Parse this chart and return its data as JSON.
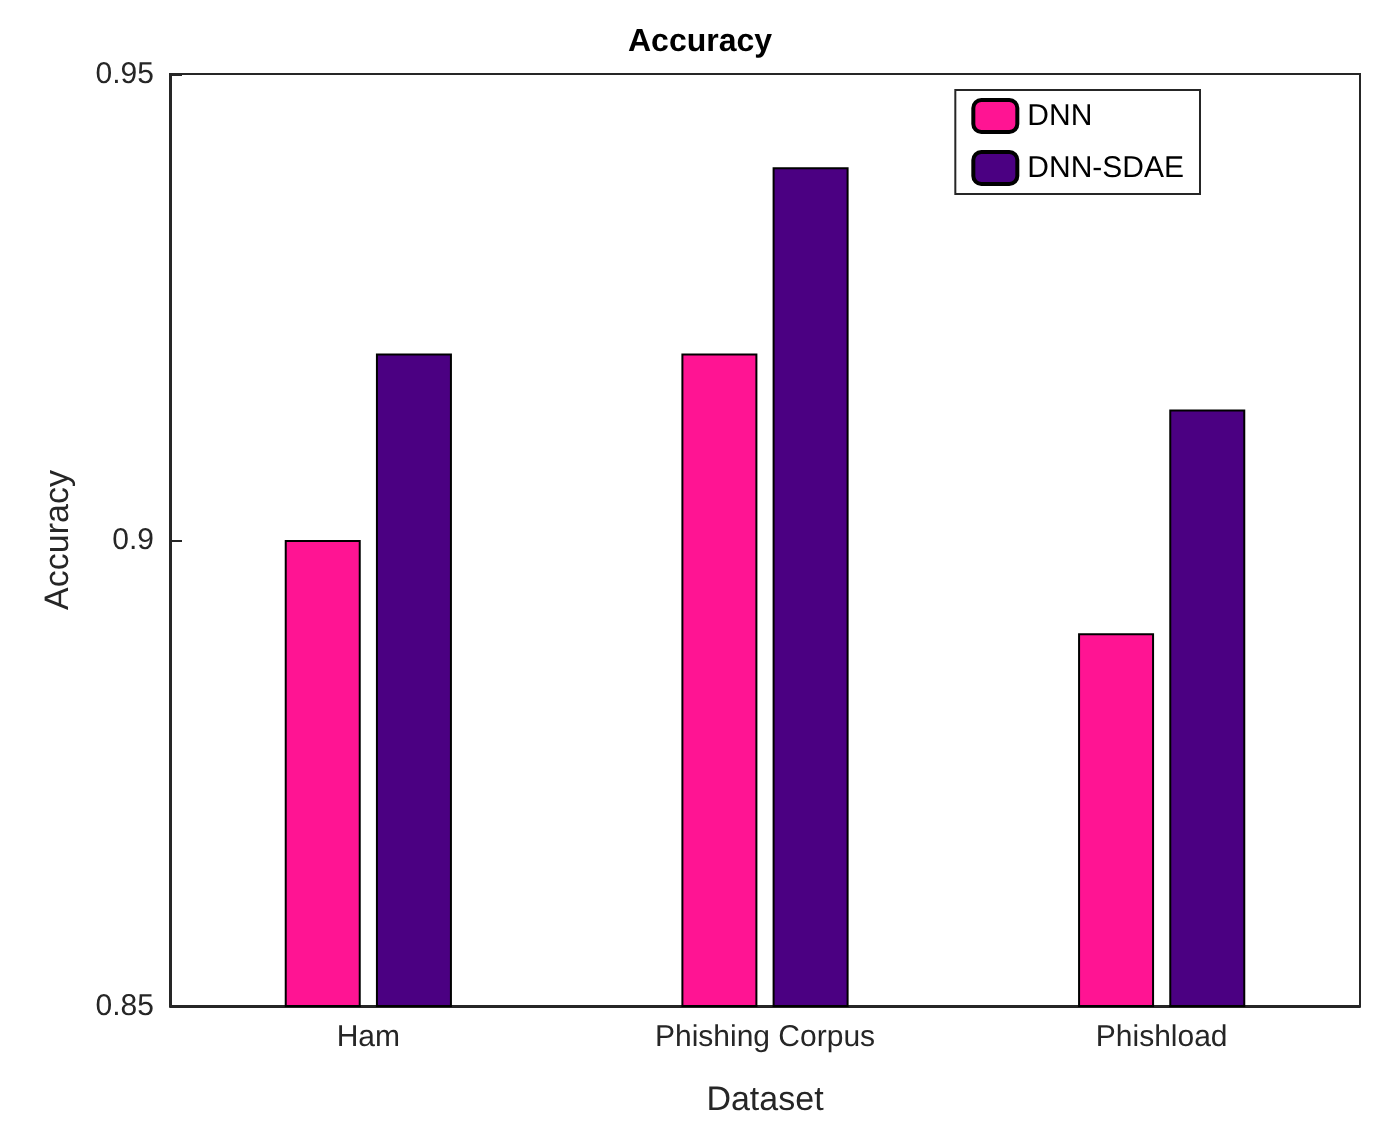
{
  "chart_data": {
    "type": "bar",
    "title": "Accuracy",
    "xlabel": "Dataset",
    "ylabel": "Accuracy",
    "categories": [
      "Ham",
      "Phishing Corpus",
      "Phishload"
    ],
    "series": [
      {
        "name": "DNN",
        "color": "#ff1493",
        "values": [
          0.9,
          0.92,
          0.89
        ]
      },
      {
        "name": "DNN-SDAE",
        "color": "#4b0082",
        "values": [
          0.92,
          0.94,
          0.914
        ]
      }
    ],
    "ylim": [
      0.85,
      0.95
    ],
    "yticks": [
      0.85,
      0.9,
      0.95
    ],
    "grid": false,
    "legend": "top right"
  }
}
